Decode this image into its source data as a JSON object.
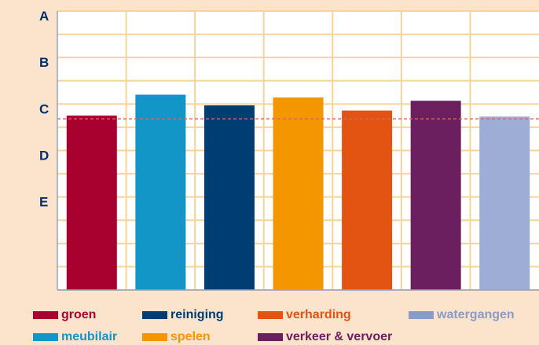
{
  "chart_data": {
    "type": "bar",
    "categories": [
      "groen",
      "meubilair",
      "reiniging",
      "spelen",
      "verharding",
      "verkeer & vervoer",
      "watergangen"
    ],
    "values": [
      3.75,
      4.2,
      3.97,
      4.14,
      3.86,
      4.07,
      3.73
    ],
    "colors": [
      "#a8002f",
      "#1296c8",
      "#003d73",
      "#f39600",
      "#e35413",
      "#6b1f5e",
      "#9dadd6"
    ],
    "y_scale": {
      "min": 0,
      "max": 6,
      "tick_labels": [
        "E",
        "D",
        "C",
        "B",
        "A"
      ],
      "tick_values": [
        1,
        2,
        3,
        4,
        5,
        6
      ]
    },
    "reference_line": {
      "value": 3.68,
      "color": "#e06060",
      "style": "dashed"
    },
    "grid": true,
    "legend": {
      "placement": "bottom",
      "items": [
        {
          "label": "groen",
          "color": "#a8002f",
          "label_color": "#b0002f"
        },
        {
          "label": "reiniging",
          "color": "#003d73",
          "label_color": "#003d73"
        },
        {
          "label": "verharding",
          "color": "#e35413",
          "label_color": "#e35413"
        },
        {
          "label": "watergangen",
          "color": "#8a9bc8",
          "label_color": "#8a9bc8"
        },
        {
          "label": "meubilair",
          "color": "#1296c8",
          "label_color": "#1296c8"
        },
        {
          "label": "spelen",
          "color": "#f39600",
          "label_color": "#f39600"
        },
        {
          "label": "verkeer & vervoer",
          "color": "#6b1f5e",
          "label_color": "#6b1f5e"
        }
      ]
    }
  }
}
